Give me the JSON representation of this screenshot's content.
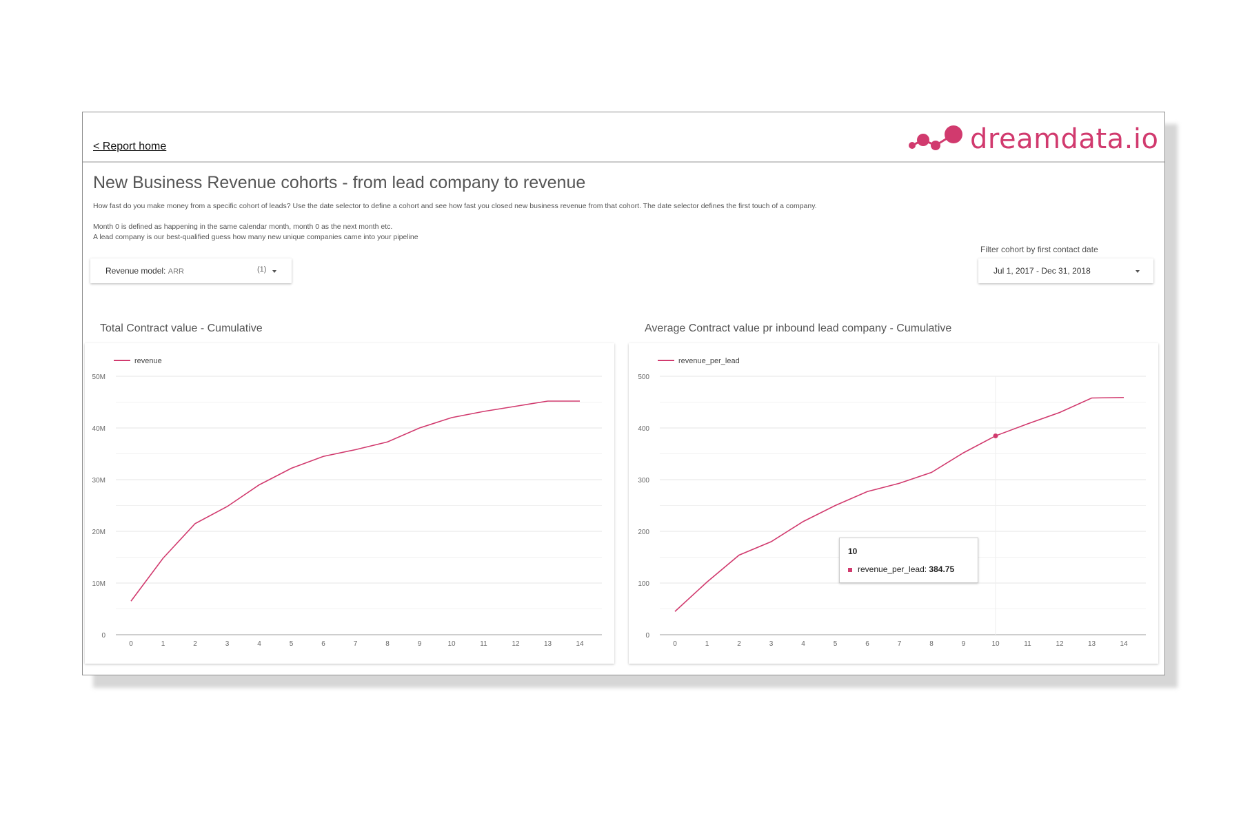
{
  "nav": {
    "report_home": "< Report home"
  },
  "brand": {
    "logo_text": "dreamdata.io",
    "color": "#d13a6e"
  },
  "header": {
    "title": "New Business Revenue cohorts - from lead company to revenue",
    "description_1": "How fast do you make money from a specific cohort of leads? Use the date selector to define a cohort and see how fast you closed new business revenue from that cohort. The date selector defines the first touch of a company.",
    "description_2": "Month 0 is defined as happening in the same calendar month, month 0 as the next month etc.",
    "description_3": "A lead company is our best-qualified guess how many new unique companies came into your pipeline"
  },
  "controls": {
    "revenue_model_label": "Revenue model:",
    "revenue_model_value": "ARR",
    "revenue_model_count": "(1)",
    "filter_label": "Filter cohort by first contact date",
    "date_range": "Jul 1, 2017 - Dec 31, 2018"
  },
  "chart_data": [
    {
      "type": "line",
      "title": "Total Contract value - Cumulative",
      "x": [
        0,
        1,
        2,
        3,
        4,
        5,
        6,
        7,
        8,
        9,
        10,
        11,
        12,
        13,
        14
      ],
      "series": [
        {
          "name": "revenue",
          "values": [
            6.5,
            14.8,
            21.5,
            24.8,
            29.0,
            32.2,
            34.5,
            35.8,
            37.3,
            40.0,
            42.0,
            43.2,
            44.2,
            45.2,
            45.2
          ]
        }
      ],
      "y_tick_labels": [
        "0",
        "10M",
        "20M",
        "30M",
        "40M",
        "50M"
      ],
      "y_unit": "M",
      "ylim": [
        0,
        50
      ],
      "legend_position": "top-left",
      "grid": true,
      "color": "#d13a6e"
    },
    {
      "type": "line",
      "title": "Average Contract value pr inbound lead company - Cumulative",
      "x": [
        0,
        1,
        2,
        3,
        4,
        5,
        6,
        7,
        8,
        9,
        10,
        11,
        12,
        13,
        14
      ],
      "series": [
        {
          "name": "revenue_per_lead",
          "values": [
            45,
            102,
            154,
            180,
            219,
            250,
            277,
            293,
            314,
            352,
            384.75,
            408,
            430,
            458,
            459
          ]
        }
      ],
      "y_tick_labels": [
        "0",
        "100",
        "200",
        "300",
        "400",
        "500"
      ],
      "ylim": [
        0,
        500
      ],
      "legend_position": "top-left",
      "grid": true,
      "color": "#d13a6e",
      "tooltip": {
        "x": "10",
        "series": "revenue_per_lead:",
        "value": "384.75"
      }
    }
  ]
}
